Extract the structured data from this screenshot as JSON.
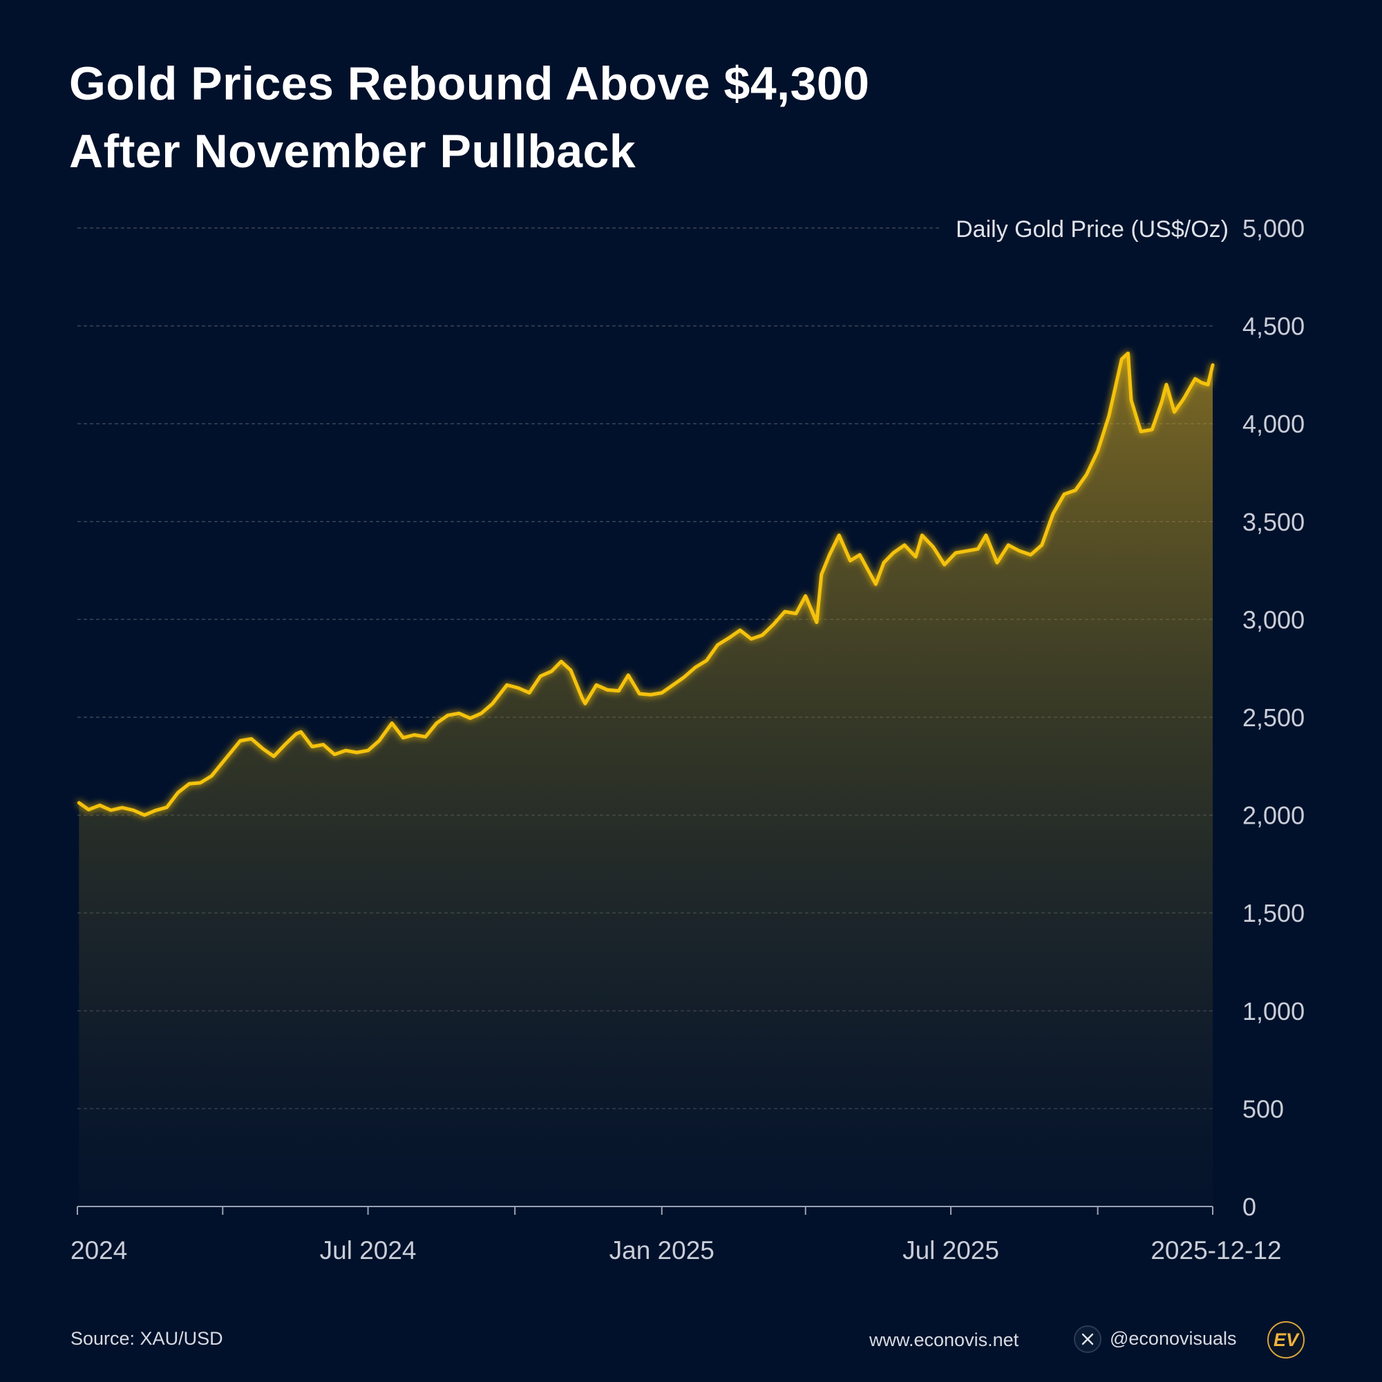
{
  "title": {
    "line1": "Gold Prices Rebound Above $4,300",
    "line2": "After November Pullback"
  },
  "chart_data": {
    "type": "area",
    "title": "Gold Prices Rebound Above $4,300 After November Pullback",
    "ylabel": "Daily Gold Price (US$/Oz)",
    "xlabel": "",
    "ylim": [
      0,
      5000
    ],
    "yticks": [
      0,
      500,
      1000,
      1500,
      2000,
      2500,
      3000,
      3500,
      4000,
      4500,
      5000
    ],
    "ytick_labels": [
      "0",
      "500",
      "1,000",
      "1,500",
      "2,000",
      "2,500",
      "3,000",
      "3,500",
      "4,000",
      "4,500",
      "5,000"
    ],
    "xlim": [
      "2024-01-01",
      "2025-12-12"
    ],
    "xticks": [
      "2024-01-01",
      "2024-04-01",
      "2024-07-01",
      "2024-10-01",
      "2025-01-01",
      "2025-04-01",
      "2025-07-01",
      "2025-10-01",
      "2025-12-12"
    ],
    "xtick_labels": [
      {
        "date": "2024-01-01",
        "label": "2024"
      },
      {
        "date": "2024-07-01",
        "label": "Jul 2024"
      },
      {
        "date": "2025-01-01",
        "label": "Jan 2025"
      },
      {
        "date": "2025-07-01",
        "label": "Jul 2025"
      },
      {
        "date": "2025-12-12",
        "label": "2025-12-12"
      }
    ],
    "grid": true,
    "series": [
      {
        "name": "XAU/USD",
        "color": "#f5c211",
        "points": [
          [
            "2024-01-02",
            2063
          ],
          [
            "2024-01-08",
            2028
          ],
          [
            "2024-01-15",
            2050
          ],
          [
            "2024-01-22",
            2025
          ],
          [
            "2024-01-29",
            2038
          ],
          [
            "2024-02-05",
            2025
          ],
          [
            "2024-02-12",
            2000
          ],
          [
            "2024-02-19",
            2024
          ],
          [
            "2024-02-26",
            2040
          ],
          [
            "2024-03-04",
            2115
          ],
          [
            "2024-03-11",
            2160
          ],
          [
            "2024-03-18",
            2165
          ],
          [
            "2024-03-25",
            2200
          ],
          [
            "2024-04-01",
            2270
          ],
          [
            "2024-04-08",
            2340
          ],
          [
            "2024-04-12",
            2380
          ],
          [
            "2024-04-19",
            2390
          ],
          [
            "2024-04-26",
            2340
          ],
          [
            "2024-05-03",
            2300
          ],
          [
            "2024-05-10",
            2360
          ],
          [
            "2024-05-17",
            2415
          ],
          [
            "2024-05-20",
            2425
          ],
          [
            "2024-05-27",
            2350
          ],
          [
            "2024-06-03",
            2360
          ],
          [
            "2024-06-10",
            2310
          ],
          [
            "2024-06-17",
            2330
          ],
          [
            "2024-06-24",
            2320
          ],
          [
            "2024-07-01",
            2330
          ],
          [
            "2024-07-08",
            2380
          ],
          [
            "2024-07-16",
            2470
          ],
          [
            "2024-07-23",
            2395
          ],
          [
            "2024-07-30",
            2410
          ],
          [
            "2024-08-06",
            2400
          ],
          [
            "2024-08-13",
            2470
          ],
          [
            "2024-08-20",
            2510
          ],
          [
            "2024-08-27",
            2520
          ],
          [
            "2024-09-03",
            2495
          ],
          [
            "2024-09-10",
            2520
          ],
          [
            "2024-09-17",
            2570
          ],
          [
            "2024-09-26",
            2665
          ],
          [
            "2024-10-03",
            2650
          ],
          [
            "2024-10-10",
            2625
          ],
          [
            "2024-10-17",
            2710
          ],
          [
            "2024-10-24",
            2735
          ],
          [
            "2024-10-30",
            2785
          ],
          [
            "2024-11-05",
            2740
          ],
          [
            "2024-11-12",
            2600
          ],
          [
            "2024-11-14",
            2570
          ],
          [
            "2024-11-21",
            2665
          ],
          [
            "2024-11-28",
            2640
          ],
          [
            "2024-12-05",
            2635
          ],
          [
            "2024-12-11",
            2715
          ],
          [
            "2024-12-18",
            2620
          ],
          [
            "2024-12-25",
            2615
          ],
          [
            "2025-01-01",
            2625
          ],
          [
            "2025-01-08",
            2665
          ],
          [
            "2025-01-15",
            2705
          ],
          [
            "2025-01-22",
            2755
          ],
          [
            "2025-01-29",
            2790
          ],
          [
            "2025-02-05",
            2870
          ],
          [
            "2025-02-12",
            2905
          ],
          [
            "2025-02-19",
            2945
          ],
          [
            "2025-02-26",
            2900
          ],
          [
            "2025-03-05",
            2920
          ],
          [
            "2025-03-12",
            2975
          ],
          [
            "2025-03-19",
            3040
          ],
          [
            "2025-03-26",
            3030
          ],
          [
            "2025-04-01",
            3120
          ],
          [
            "2025-04-08",
            2985
          ],
          [
            "2025-04-11",
            3230
          ],
          [
            "2025-04-16",
            3330
          ],
          [
            "2025-04-22",
            3430
          ],
          [
            "2025-04-29",
            3300
          ],
          [
            "2025-05-05",
            3330
          ],
          [
            "2025-05-09",
            3270
          ],
          [
            "2025-05-15",
            3180
          ],
          [
            "2025-05-20",
            3290
          ],
          [
            "2025-05-26",
            3340
          ],
          [
            "2025-06-02",
            3380
          ],
          [
            "2025-06-09",
            3320
          ],
          [
            "2025-06-13",
            3430
          ],
          [
            "2025-06-20",
            3370
          ],
          [
            "2025-06-27",
            3280
          ],
          [
            "2025-07-04",
            3340
          ],
          [
            "2025-07-11",
            3350
          ],
          [
            "2025-07-18",
            3360
          ],
          [
            "2025-07-23",
            3430
          ],
          [
            "2025-07-30",
            3290
          ],
          [
            "2025-08-06",
            3380
          ],
          [
            "2025-08-13",
            3350
          ],
          [
            "2025-08-20",
            3330
          ],
          [
            "2025-08-27",
            3380
          ],
          [
            "2025-09-03",
            3540
          ],
          [
            "2025-09-10",
            3640
          ],
          [
            "2025-09-17",
            3660
          ],
          [
            "2025-09-24",
            3740
          ],
          [
            "2025-10-01",
            3860
          ],
          [
            "2025-10-08",
            4040
          ],
          [
            "2025-10-16",
            4330
          ],
          [
            "2025-10-20",
            4360
          ],
          [
            "2025-10-22",
            4120
          ],
          [
            "2025-10-28",
            3960
          ],
          [
            "2025-11-04",
            3970
          ],
          [
            "2025-11-10",
            4110
          ],
          [
            "2025-11-13",
            4200
          ],
          [
            "2025-11-18",
            4060
          ],
          [
            "2025-11-24",
            4130
          ],
          [
            "2025-12-01",
            4230
          ],
          [
            "2025-12-05",
            4210
          ],
          [
            "2025-12-09",
            4200
          ],
          [
            "2025-12-12",
            4300
          ]
        ]
      }
    ]
  },
  "footer": {
    "source": "Source: XAU/USD",
    "website": "www.econovis.net",
    "handle": "@econovisuals",
    "logo_text": "EV",
    "x_icon": "x-logo-icon"
  },
  "colors": {
    "background": "#02112b",
    "line": "#f5c211",
    "grid": "#3a4458",
    "axis_text": "#c9ced8"
  }
}
